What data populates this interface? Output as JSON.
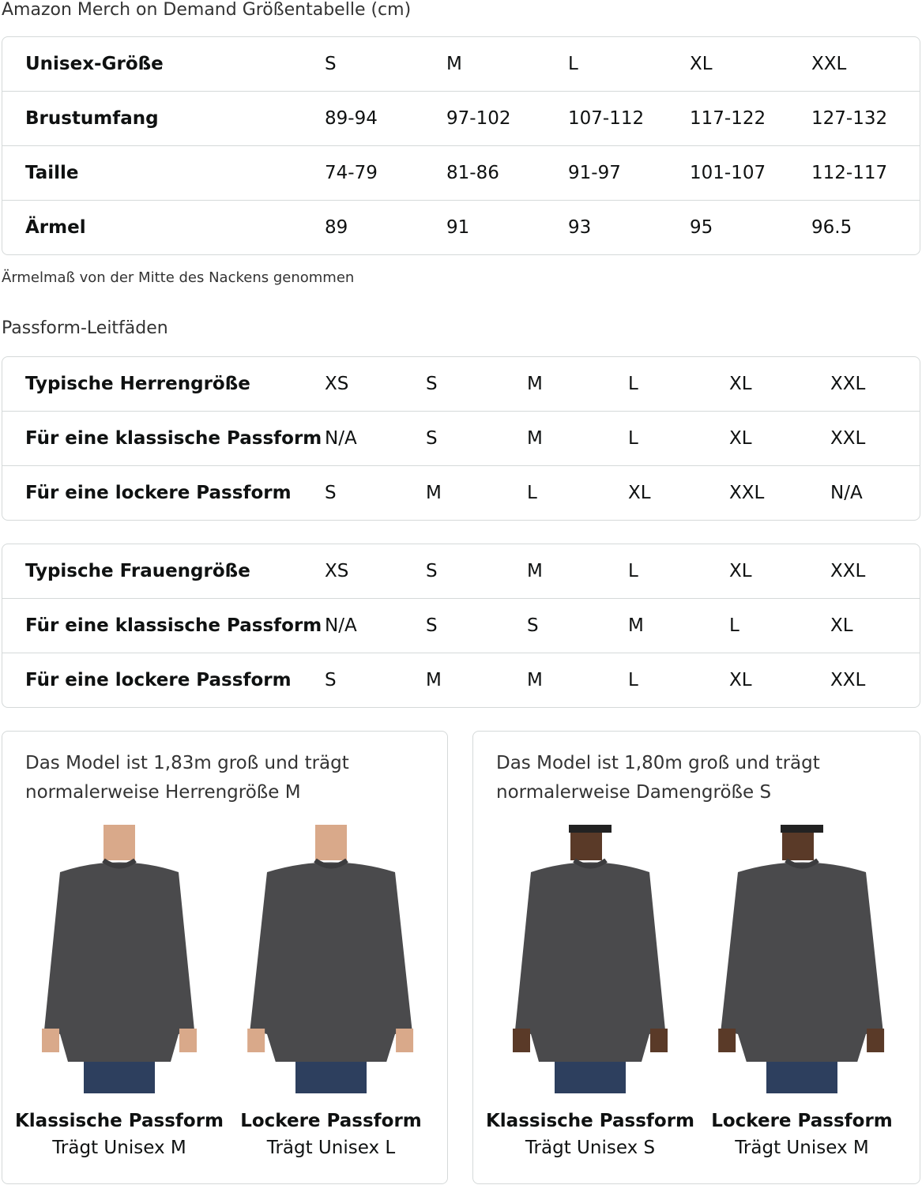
{
  "title": "Amazon Merch on Demand Größentabelle (cm)",
  "unisex": {
    "rows": [
      {
        "label": "Unisex-Größe",
        "values": [
          "S",
          "M",
          "L",
          "XL",
          "XXL"
        ]
      },
      {
        "label": "Brustumfang",
        "values": [
          "89-94",
          "97-102",
          "107-112",
          "117-122",
          "127-132"
        ]
      },
      {
        "label": "Taille",
        "values": [
          "74-79",
          "81-86",
          "91-97",
          "101-107",
          "112-117"
        ]
      },
      {
        "label": "Ärmel",
        "values": [
          "89",
          "91",
          "93",
          "95",
          "96.5"
        ]
      }
    ]
  },
  "note": "Ärmelmaß von der Mitte des Nackens genommen",
  "fit_title": "Passform-Leitfäden",
  "men": {
    "rows": [
      {
        "label": "Typische Herrengröße",
        "values": [
          "XS",
          "S",
          "M",
          "L",
          "XL",
          "XXL"
        ]
      },
      {
        "label": "Für eine klassische Passform",
        "values": [
          "N/A",
          "S",
          "M",
          "L",
          "XL",
          "XXL"
        ]
      },
      {
        "label": "Für eine lockere Passform",
        "values": [
          "S",
          "M",
          "L",
          "XL",
          "XXL",
          "N/A"
        ]
      }
    ]
  },
  "women": {
    "rows": [
      {
        "label": "Typische Frauengröße",
        "values": [
          "XS",
          "S",
          "M",
          "L",
          "XL",
          "XXL"
        ]
      },
      {
        "label": "Für eine klassische Passform",
        "values": [
          "N/A",
          "S",
          "S",
          "M",
          "L",
          "XL"
        ]
      },
      {
        "label": "Für eine lockere Passform",
        "values": [
          "S",
          "M",
          "M",
          "L",
          "XL",
          "XXL"
        ]
      }
    ]
  },
  "cards": [
    {
      "caption": "Das Model ist 1,83m groß und trägt normalerweise Herrengröße M",
      "figures": [
        {
          "title": "Klassische Passform",
          "sub": "Trägt Unisex M"
        },
        {
          "title": "Lockere Passform",
          "sub": "Trägt Unisex L"
        }
      ]
    },
    {
      "caption": "Das Model ist 1,80m groß und trägt normalerweise Damengröße S",
      "figures": [
        {
          "title": "Klassische Passform",
          "sub": "Trägt Unisex S"
        },
        {
          "title": "Lockere Passform",
          "sub": "Trägt Unisex M"
        }
      ]
    }
  ]
}
